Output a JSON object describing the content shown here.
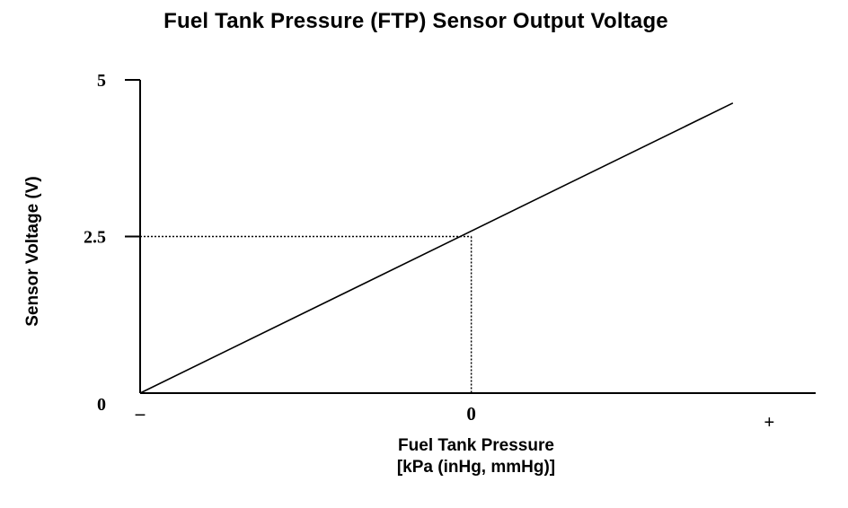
{
  "chart_data": {
    "type": "line",
    "title": "Fuel Tank Pressure (FTP) Sensor Output Voltage",
    "xlabel_line1": "Fuel Tank Pressure",
    "xlabel_line2": "[kPa (inHg, mmHg)]",
    "ylabel": "Sensor Voltage (V)",
    "x_ticks": [
      {
        "label": "–",
        "value": -1
      },
      {
        "label": "0",
        "value": 0
      },
      {
        "label": "+",
        "value": 0.9
      }
    ],
    "y_ticks": [
      {
        "label": "0",
        "value": 0
      },
      {
        "label": "2.5",
        "value": 2.5
      },
      {
        "label": "5",
        "value": 5
      }
    ],
    "xlim": [
      -1,
      1.04
    ],
    "ylim": [
      0,
      5
    ],
    "series": [
      {
        "x": [
          -1,
          0.79
        ],
        "y": [
          0,
          4.63
        ]
      }
    ],
    "reference_point": {
      "x": 0,
      "y": 2.5
    },
    "grid": false,
    "colors": {
      "line": "#000000",
      "axis": "#000000",
      "reference": "#000000"
    }
  }
}
